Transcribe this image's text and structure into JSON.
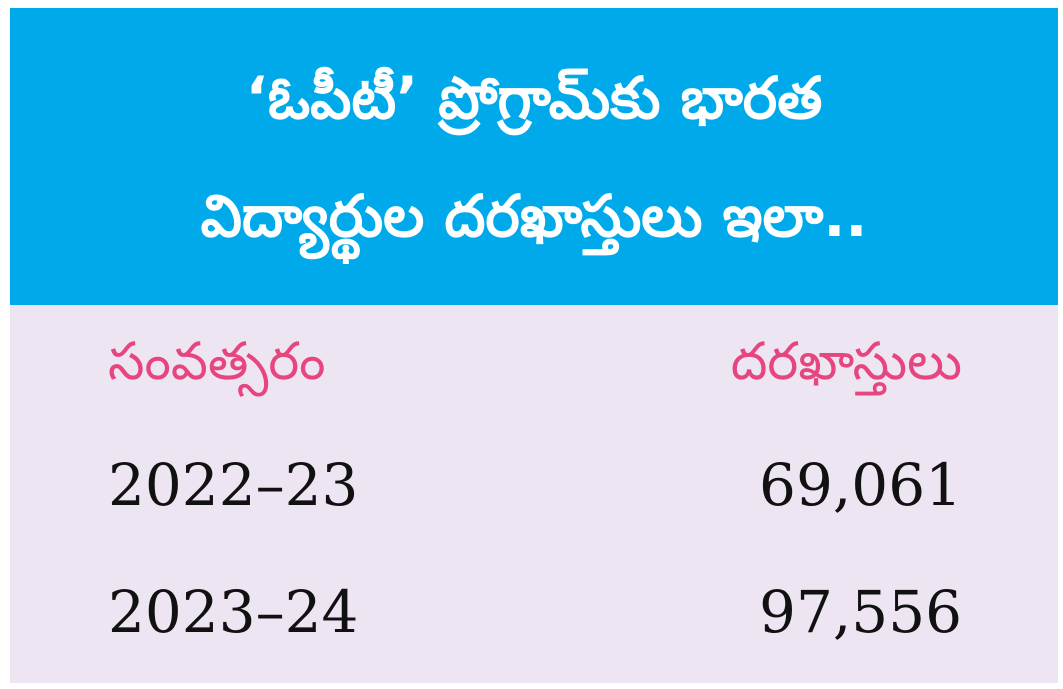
{
  "header": {
    "title_lines": [
      "‘ఓపీటీ’ ప్రోగ్రామ్‌కు భారత",
      "విద్యార్థుల దరఖాస్తులు ఇలా.."
    ]
  },
  "table": {
    "columns": [
      "సంవత్సరం",
      "దరఖాస్తులు"
    ],
    "rows": [
      [
        "2022–23",
        "69,061"
      ],
      [
        "2023–24",
        "97,556"
      ]
    ]
  }
}
